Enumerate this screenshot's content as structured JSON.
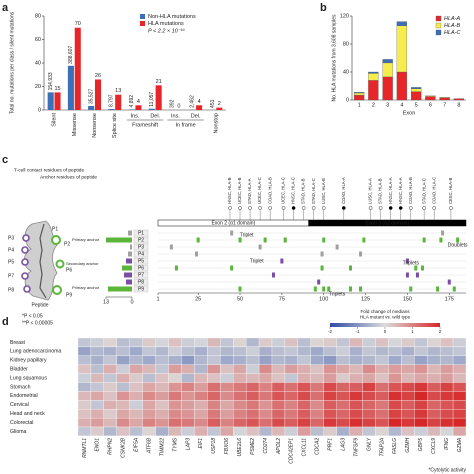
{
  "chart_data": [
    {
      "panel": "a",
      "type": "bar",
      "ylabel": "Total no. mutations per class / silent mutations",
      "categories": [
        "Silent",
        "Missense",
        "Nonsense",
        "Splice site",
        "Ins.",
        "Del.",
        "Ins.",
        "Del.",
        "Nonstop"
      ],
      "groups": [
        "Frameshift",
        "In frame"
      ],
      "series": [
        {
          "name": "Non-HLA mutations",
          "color": "#3b6fb6",
          "values": [
            15,
            37.6,
            3.4,
            0.85,
            0.47,
            1.07,
            0.04,
            0.24,
            0.04
          ],
          "counts": [
            "154,933",
            "388,607",
            "35,527",
            "8,797",
            "4,892",
            "11,057",
            "392",
            "2,462",
            "451"
          ]
        },
        {
          "name": "HLA mutations",
          "color": "#e8262a",
          "values": [
            15,
            70,
            26,
            13,
            4,
            21,
            0,
            4,
            2
          ]
        }
      ],
      "annotation": "P < 2.2 × 10⁻¹⁶",
      "ylim": [
        0,
        80
      ],
      "yticks": [
        0,
        20,
        40,
        60,
        80
      ]
    },
    {
      "panel": "b",
      "type": "stacked_bar",
      "ylabel": "No. HLA mutations from 3,608 samples",
      "xlabel": "Exon",
      "categories": [
        "1",
        "2",
        "3",
        "4",
        "5",
        "6",
        "7",
        "8"
      ],
      "series": [
        {
          "name": "HLA-A",
          "color": "#e8262a",
          "values": [
            7,
            28,
            33,
            40,
            12,
            5,
            3,
            2
          ]
        },
        {
          "name": "HLA-B",
          "color": "#f7ec4e",
          "values": [
            3,
            10,
            20,
            66,
            4,
            1,
            1,
            0
          ]
        },
        {
          "name": "HLA-C",
          "color": "#3b6fb6",
          "values": [
            1,
            2,
            5,
            6,
            2,
            0,
            0,
            0
          ]
        }
      ],
      "ylim": [
        0,
        120
      ],
      "yticks": [
        0,
        40,
        80,
        120
      ]
    },
    {
      "panel": "c",
      "type": "residue_map",
      "title_left": "T-cell contact residues of peptide",
      "title_right": "Anchor residues of peptide",
      "diagram_labels": [
        "P1",
        "P2",
        "P3",
        "P4",
        "P5",
        "P6",
        "P7",
        "P8",
        "P9"
      ],
      "anchor_labels": [
        "Primary anchor",
        "Secondary anchor",
        "Primary anchor"
      ],
      "peptide_label": "Peptide",
      "rows": [
        {
          "name": "P1",
          "color": "#a0a0a0",
          "count": 2,
          "positions": [
            45,
            171
          ]
        },
        {
          "name": "P2",
          "color": "#5bb53a",
          "count": 13,
          "positions": [
            25,
            50,
            65,
            77,
            100,
            124,
            160,
            170,
            180
          ]
        },
        {
          "name": "P3",
          "color": "#a0a0a0",
          "count": 1,
          "positions": [
            9,
            62,
            108
          ]
        },
        {
          "name": "P4",
          "color": "#a0a0a0",
          "count": 2,
          "positions": [
            24,
            99,
            122
          ]
        },
        {
          "name": "P5",
          "color": "#7a4fa3",
          "count": 3,
          "positions": [
            75,
            150
          ]
        },
        {
          "name": "P6",
          "color": "#5bb53a",
          "count": 5,
          "positions": [
            12,
            45,
            99,
            116,
            155,
            159
          ]
        },
        {
          "name": "P7",
          "color": "#7a4fa3",
          "count": 4,
          "positions": [
            70,
            150,
            156
          ]
        },
        {
          "name": "P8",
          "color": "#7a4fa3",
          "count": 3,
          "positions": [
            97,
            175
          ]
        },
        {
          "name": "P9",
          "color": "#5bb53a",
          "count": 12,
          "positions": [
            50,
            95,
            100,
            103,
            116,
            122,
            152,
            168,
            178
          ]
        }
      ],
      "count_xlim": [
        13,
        0
      ],
      "count_ticks": [
        13,
        0
      ],
      "xlim": [
        1,
        185
      ],
      "xticks": [
        1,
        25,
        50,
        75,
        100,
        125,
        150,
        175
      ],
      "exons": [
        {
          "label": "Exon 2 (α1 domain)",
          "start": 1,
          "end": 91,
          "color": "#ffffff"
        },
        {
          "label": "Exon 3 (α2 domain)",
          "start": 91,
          "end": 185,
          "color": "#000000"
        }
      ],
      "annotations": [
        "Triplet",
        "Triplet",
        "Triplets",
        "Triplets",
        "Doublets"
      ],
      "samples": [
        {
          "label": "HNSC, HLA-B",
          "position": 44,
          "filled": false
        },
        {
          "label": "UCEC, HLA-B",
          "position": 50,
          "filled": false
        },
        {
          "label": "STAD, HLA-A",
          "position": 56,
          "filled": false
        },
        {
          "label": "UCEC, HLA-C",
          "position": 62,
          "filled": false
        },
        {
          "label": "COAD, HLA-B",
          "position": 68,
          "filled": false
        },
        {
          "label": "UCEC, HLA-C",
          "position": 76,
          "filled": false
        },
        {
          "label": "HNSC, HLA-C",
          "position": 82,
          "filled": true
        },
        {
          "label": "STAD, HLA-B",
          "position": 88,
          "filled": false
        },
        {
          "label": "STAD, HLA-C",
          "position": 94,
          "filled": false
        },
        {
          "label": "LUSC, HLA-B",
          "position": 100,
          "filled": false
        },
        {
          "label": "COAD, HLA-A",
          "position": 112,
          "filled": true
        },
        {
          "label": "LUSC, HLA-A",
          "position": 128,
          "filled": false
        },
        {
          "label": "STAD, HLA-B",
          "position": 134,
          "filled": false
        },
        {
          "label": "HNSC, HLA-A",
          "position": 140,
          "filled": true
        },
        {
          "label": "HNSC, HLA-A",
          "position": 146,
          "filled": true
        },
        {
          "label": "COAD, HLA-B",
          "position": 152,
          "filled": false
        },
        {
          "label": "STAD, HLA-C",
          "position": 160,
          "filled": false
        },
        {
          "label": "COAD, HLA-C",
          "position": 166,
          "filled": false
        },
        {
          "label": "CESC, HLA-B",
          "position": 176,
          "filled": false
        }
      ]
    },
    {
      "panel": "d",
      "type": "heatmap",
      "rows": [
        "Breast",
        "Lung adenocarcinoma",
        "Kidney papillary",
        "Bladder",
        "Lung squamous",
        "Stomach",
        "Endometrial",
        "Cervical",
        "Head and neck",
        "Colorectal",
        "Glioma"
      ],
      "columns": [
        "RNMTL1",
        "ENO1",
        "RHPN2",
        "CSNK2B",
        "EIF5A",
        "ATF6B",
        "TIMM22",
        "TYMS",
        "LAP3",
        "EIF1",
        "USP18",
        "FBXO6",
        "UBE2L6",
        "PSME2",
        "CD274",
        "APOL2",
        "CDC42EP1",
        "CXCL11",
        "CDCA2",
        "PRF1",
        "LAG3",
        "TNFSF9",
        "GNLY",
        "TFAP2A",
        "FASLG",
        "GZMH",
        "GBP5",
        "CXCL9",
        "IFNG",
        "GZMA"
      ],
      "values": [
        [
          -0.3,
          -0.2,
          0.1,
          -0.4,
          -0.3,
          0.2,
          -0.1,
          0.3,
          -0.2,
          -0.1,
          0.4,
          -0.3,
          0.1,
          -0.5,
          0.2,
          -0.2,
          0.3,
          -0.4,
          0.1,
          0.2,
          -0.3,
          0.4,
          -0.2,
          0.3,
          -0.1,
          0.2,
          -0.3,
          0.1,
          0.3,
          -0.2
        ],
        [
          -0.8,
          -0.5,
          -0.6,
          -0.4,
          -0.7,
          -0.3,
          -0.5,
          -0.2,
          -0.4,
          -0.6,
          -0.3,
          -0.5,
          -0.4,
          -0.2,
          -0.6,
          -0.4,
          -0.3,
          -0.5,
          -0.7,
          -0.4,
          -0.2,
          -0.6,
          -0.3,
          -0.5,
          -0.4,
          -0.6,
          -0.3,
          -0.5,
          -0.4,
          -0.3
        ],
        [
          -0.4,
          -0.6,
          -0.3,
          -0.8,
          -0.5,
          -0.7,
          -0.4,
          -0.6,
          -0.9,
          -0.5,
          -0.3,
          -0.7,
          -0.6,
          -0.4,
          -0.8,
          -0.5,
          -0.6,
          -0.3,
          -0.7,
          -0.9,
          -0.4,
          -0.6,
          -0.5,
          -0.3,
          -0.7,
          -0.4,
          -0.8,
          -0.6,
          -0.5,
          -0.7
        ],
        [
          0.3,
          -0.4,
          0.5,
          -0.2,
          0.6,
          0.4,
          -0.3,
          0.7,
          0.5,
          -0.5,
          0.8,
          0.3,
          0.6,
          -0.2,
          0.9,
          0.4,
          0.7,
          0.5,
          0.3,
          0.8,
          0.6,
          0.4,
          0.9,
          0.5,
          0.7,
          0.6,
          0.8,
          0.4,
          0.7,
          0.5
        ],
        [
          -0.2,
          0.4,
          -0.3,
          0.5,
          0.2,
          -0.4,
          0.3,
          0.1,
          -0.5,
          0.4,
          0.3,
          -0.2,
          0.5,
          0.4,
          0.6,
          0.3,
          -0.3,
          0.5,
          0.4,
          0.7,
          0.2,
          0.5,
          0.6,
          0.3,
          0.8,
          0.4,
          0.6,
          0.5,
          0.7,
          0.4
        ],
        [
          -0.5,
          -0.3,
          0.2,
          -0.4,
          0.3,
          0.6,
          0.4,
          0.8,
          1.0,
          0.7,
          1.2,
          0.9,
          1.1,
          1.3,
          1.0,
          1.4,
          1.2,
          1.5,
          1.1,
          1.6,
          1.3,
          1.4,
          1.7,
          1.2,
          1.5,
          1.6,
          1.8,
          1.4,
          1.7,
          1.5
        ],
        [
          0.4,
          0.6,
          0.3,
          0.8,
          0.5,
          0.9,
          0.7,
          1.1,
          0.8,
          1.0,
          1.3,
          0.9,
          1.2,
          1.4,
          1.1,
          1.5,
          1.3,
          1.6,
          1.2,
          1.7,
          1.5,
          1.8,
          1.6,
          1.4,
          1.9,
          1.7,
          2.0,
          1.6,
          1.8,
          1.9
        ],
        [
          0.2,
          -0.3,
          0.5,
          0.4,
          -0.2,
          0.6,
          0.3,
          0.8,
          0.7,
          0.5,
          1.0,
          0.6,
          0.9,
          1.1,
          0.8,
          1.2,
          1.0,
          1.3,
          0.9,
          1.4,
          1.2,
          1.5,
          1.3,
          1.1,
          1.6,
          1.4,
          1.7,
          1.3,
          1.5,
          1.6
        ],
        [
          0.3,
          0.5,
          0.2,
          0.6,
          0.4,
          0.7,
          0.5,
          0.9,
          0.8,
          0.6,
          1.1,
          0.7,
          1.0,
          1.2,
          0.9,
          1.3,
          1.1,
          1.4,
          1.0,
          1.5,
          1.3,
          1.6,
          1.4,
          1.2,
          1.7,
          1.5,
          1.8,
          1.4,
          1.6,
          1.7
        ],
        [
          0.5,
          0.7,
          0.4,
          0.9,
          0.6,
          1.0,
          0.8,
          1.2,
          1.1,
          0.9,
          1.4,
          1.0,
          1.3,
          1.5,
          1.2,
          1.6,
          1.4,
          1.7,
          1.3,
          1.8,
          1.6,
          1.9,
          1.7,
          1.5,
          2.0,
          1.8,
          2.0,
          1.7,
          1.9,
          2.0
        ],
        [
          -0.3,
          0.2,
          -0.5,
          0.3,
          -0.4,
          0.1,
          -0.6,
          0.4,
          -0.2,
          0.5,
          -0.3,
          0.6,
          -0.1,
          0.3,
          -0.5,
          0.4,
          -0.2,
          0.7,
          -0.4,
          0.2,
          -0.6,
          0.5,
          -0.3,
          0.1,
          -0.5,
          0.3,
          -0.2,
          0.4,
          -0.1,
          0.6
        ]
      ],
      "clim": [
        -2,
        2
      ],
      "cticks": [
        -2,
        -1,
        0,
        1,
        2
      ],
      "colors": [
        "#2f4aa5",
        "#dcdcdc",
        "#d62728"
      ],
      "colorbar_title": [
        "Fold change of medians",
        "HLA mutant vs. wild type"
      ],
      "notes": [
        "*P < 0.05",
        "**P < 0.00005",
        "*Cytolytic activity"
      ]
    }
  ]
}
